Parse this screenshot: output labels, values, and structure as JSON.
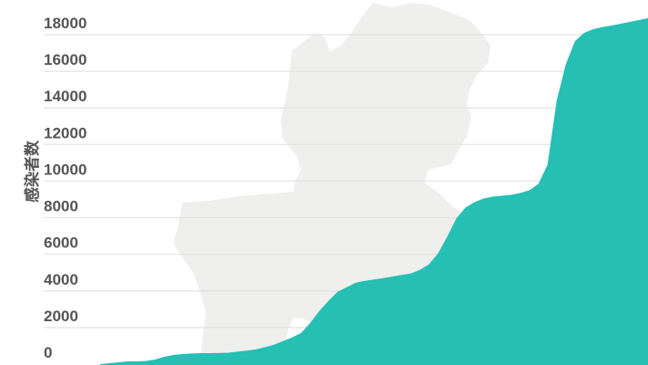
{
  "chart_data": {
    "type": "area",
    "title": "",
    "xlabel": "",
    "ylabel": "感染者数",
    "ylim": [
      0,
      18000
    ],
    "yticks": [
      0,
      2000,
      4000,
      6000,
      8000,
      10000,
      12000,
      14000,
      16000,
      18000
    ],
    "grid": true,
    "legend": "none",
    "series": [
      {
        "values": [
          0,
          50,
          100,
          150,
          150,
          170,
          250,
          400,
          500,
          550,
          580,
          600,
          600,
          610,
          620,
          680,
          740,
          800,
          920,
          1050,
          1250,
          1450,
          1700,
          2250,
          2900,
          3450,
          3950,
          4200,
          4450,
          4550,
          4620,
          4700,
          4780,
          4870,
          4950,
          5150,
          5450,
          6050,
          6950,
          7950,
          8550,
          8850,
          9050,
          9150,
          9200,
          9250,
          9350,
          9500,
          9850,
          10900,
          14400,
          16400,
          17650,
          18100,
          18300,
          18420,
          18500,
          18600,
          18700,
          18800,
          18900
        ]
      }
    ],
    "colors": {
      "area": "#25bfb4",
      "grid": "#e3e3e3",
      "map_background": "#efefee",
      "text": "#555555"
    }
  }
}
